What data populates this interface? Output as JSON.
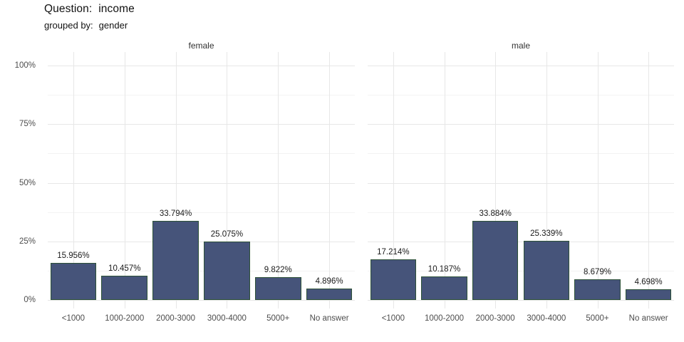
{
  "header": {
    "question_label": "Question:",
    "question_value": "income",
    "grouped_label": "grouped by:",
    "grouped_value": "gender"
  },
  "chart_data": {
    "type": "bar",
    "title": "Question: income",
    "subtitle": "grouped by: gender",
    "facet_by": "gender",
    "categories": [
      "<1000",
      "1000-2000",
      "2000-3000",
      "3000-4000",
      "5000+",
      "No answer"
    ],
    "facets": [
      {
        "name": "female",
        "values": [
          15.956,
          10.457,
          33.794,
          25.075,
          9.822,
          4.896
        ],
        "labels": [
          "15.956%",
          "10.457%",
          "33.794%",
          "25.075%",
          "9.822%",
          "4.896%"
        ]
      },
      {
        "name": "male",
        "values": [
          17.214,
          10.187,
          33.884,
          25.339,
          8.679,
          4.698
        ],
        "labels": [
          "17.214%",
          "10.187%",
          "33.884%",
          "25.339%",
          "8.679%",
          "4.698%"
        ]
      }
    ],
    "xlabel": "",
    "ylabel": "",
    "ylim": [
      0,
      100
    ],
    "y_ticks": [
      {
        "label": "0%",
        "value": 0
      },
      {
        "label": "25%",
        "value": 25
      },
      {
        "label": "50%",
        "value": 50
      },
      {
        "label": "75%",
        "value": 75
      },
      {
        "label": "100%",
        "value": 100
      }
    ],
    "y_minor_ticks": [
      12.5,
      37.5,
      62.5,
      87.5
    ],
    "grid": true,
    "legend_position": "none",
    "colors": {
      "bar_fill": "#46547a",
      "bar_border": "#2e5238",
      "grid_major": "#e7e7e7",
      "grid_minor": "#f3f3f3",
      "axis_text": "#4d4d4d",
      "label_text": "#1a1a1a"
    }
  }
}
